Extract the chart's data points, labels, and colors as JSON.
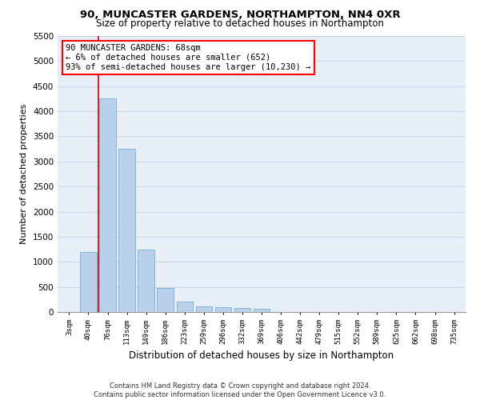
{
  "title": "90, MUNCASTER GARDENS, NORTHAMPTON, NN4 0XR",
  "subtitle": "Size of property relative to detached houses in Northampton",
  "xlabel": "Distribution of detached houses by size in Northampton",
  "ylabel": "Number of detached properties",
  "annotation_title": "90 MUNCASTER GARDENS: 68sqm",
  "annotation_line1": "← 6% of detached houses are smaller (652)",
  "annotation_line2": "93% of semi-detached houses are larger (10,230) →",
  "categories": [
    "3sqm",
    "40sqm",
    "76sqm",
    "113sqm",
    "149sqm",
    "186sqm",
    "223sqm",
    "259sqm",
    "296sqm",
    "332sqm",
    "369sqm",
    "406sqm",
    "442sqm",
    "479sqm",
    "515sqm",
    "552sqm",
    "589sqm",
    "625sqm",
    "662sqm",
    "698sqm",
    "735sqm"
  ],
  "values": [
    0,
    1200,
    4250,
    3250,
    1250,
    480,
    200,
    110,
    90,
    80,
    60,
    0,
    0,
    0,
    0,
    0,
    0,
    0,
    0,
    0,
    0
  ],
  "bar_color": "#b8d0ea",
  "bar_edge_color": "#7aadd4",
  "marker_color": "#cc0000",
  "grid_color": "#c8d4e8",
  "background_color": "#e8eef8",
  "ylim": [
    0,
    5500
  ],
  "yticks": [
    0,
    500,
    1000,
    1500,
    2000,
    2500,
    3000,
    3500,
    4000,
    4500,
    5000,
    5500
  ],
  "footer1": "Contains HM Land Registry data © Crown copyright and database right 2024.",
  "footer2": "Contains public sector information licensed under the Open Government Licence v3.0."
}
